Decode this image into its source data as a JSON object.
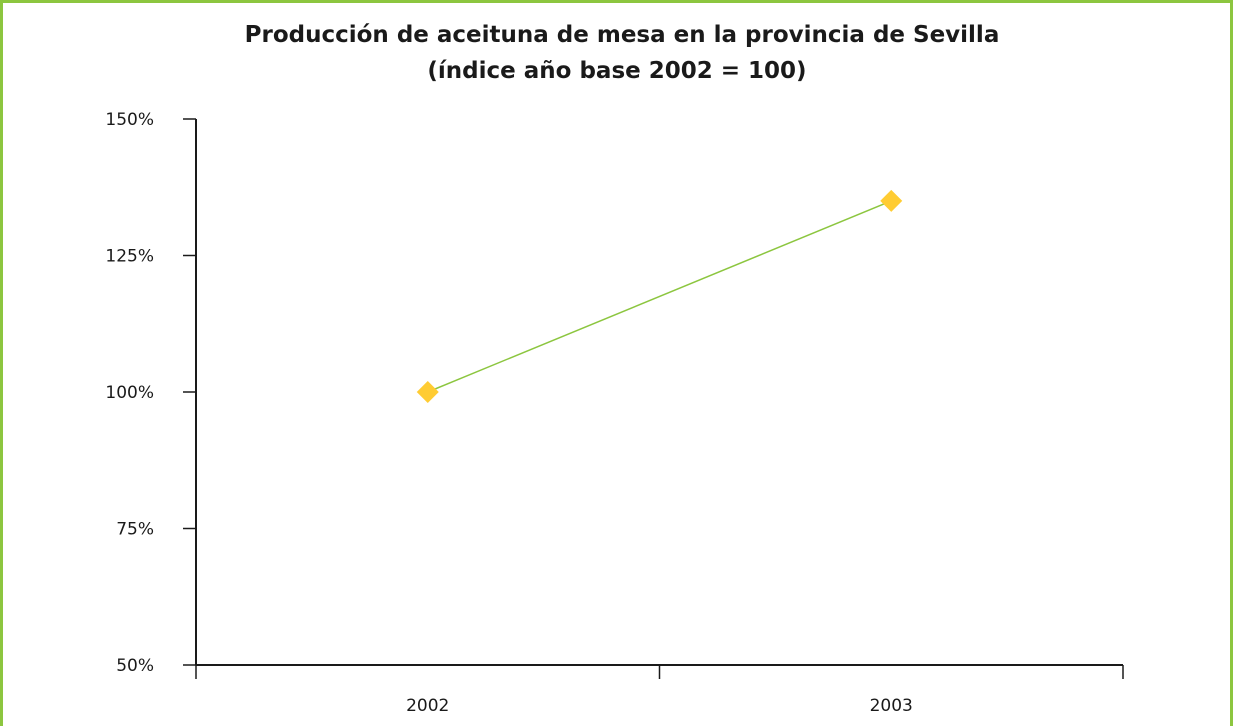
{
  "chart_data": {
    "type": "line",
    "title": "Producción de aceituna de mesa en la provincia de Sevilla",
    "subtitle": "(índice año base 2002 = 100)",
    "xlabel": "",
    "ylabel": "",
    "categories": [
      "2002",
      "2003"
    ],
    "series": [
      {
        "values": [
          100,
          135
        ],
        "line_color": "#8cc63f",
        "marker": "diamond",
        "marker_color": "#ffcc33"
      }
    ],
    "ylim": [
      50,
      150
    ],
    "yticks": [
      50,
      75,
      100,
      125,
      150
    ],
    "ytick_labels": [
      "50%",
      "75%",
      "100%",
      "125%",
      "150%"
    ],
    "grid": false,
    "legend": "none"
  },
  "style": {
    "frame_color": "#8cc63f",
    "axis_color": "#1a1a1a"
  }
}
